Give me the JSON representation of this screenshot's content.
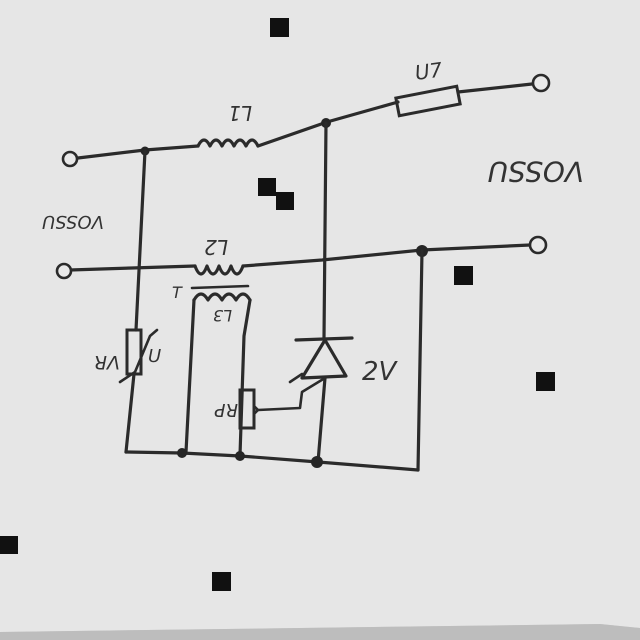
{
  "labels": {
    "fuse": "U7",
    "inductor_top": "L1",
    "inductor_mid": "L2",
    "transformer_secondary": "L3",
    "transformer_mark": "T",
    "varistor_ref": "VR",
    "varistor_side": "U",
    "thyristor": "2V",
    "potentiometer": "RP",
    "output_voltage": "VOSSU",
    "input_voltage": "VOSSU"
  }
}
